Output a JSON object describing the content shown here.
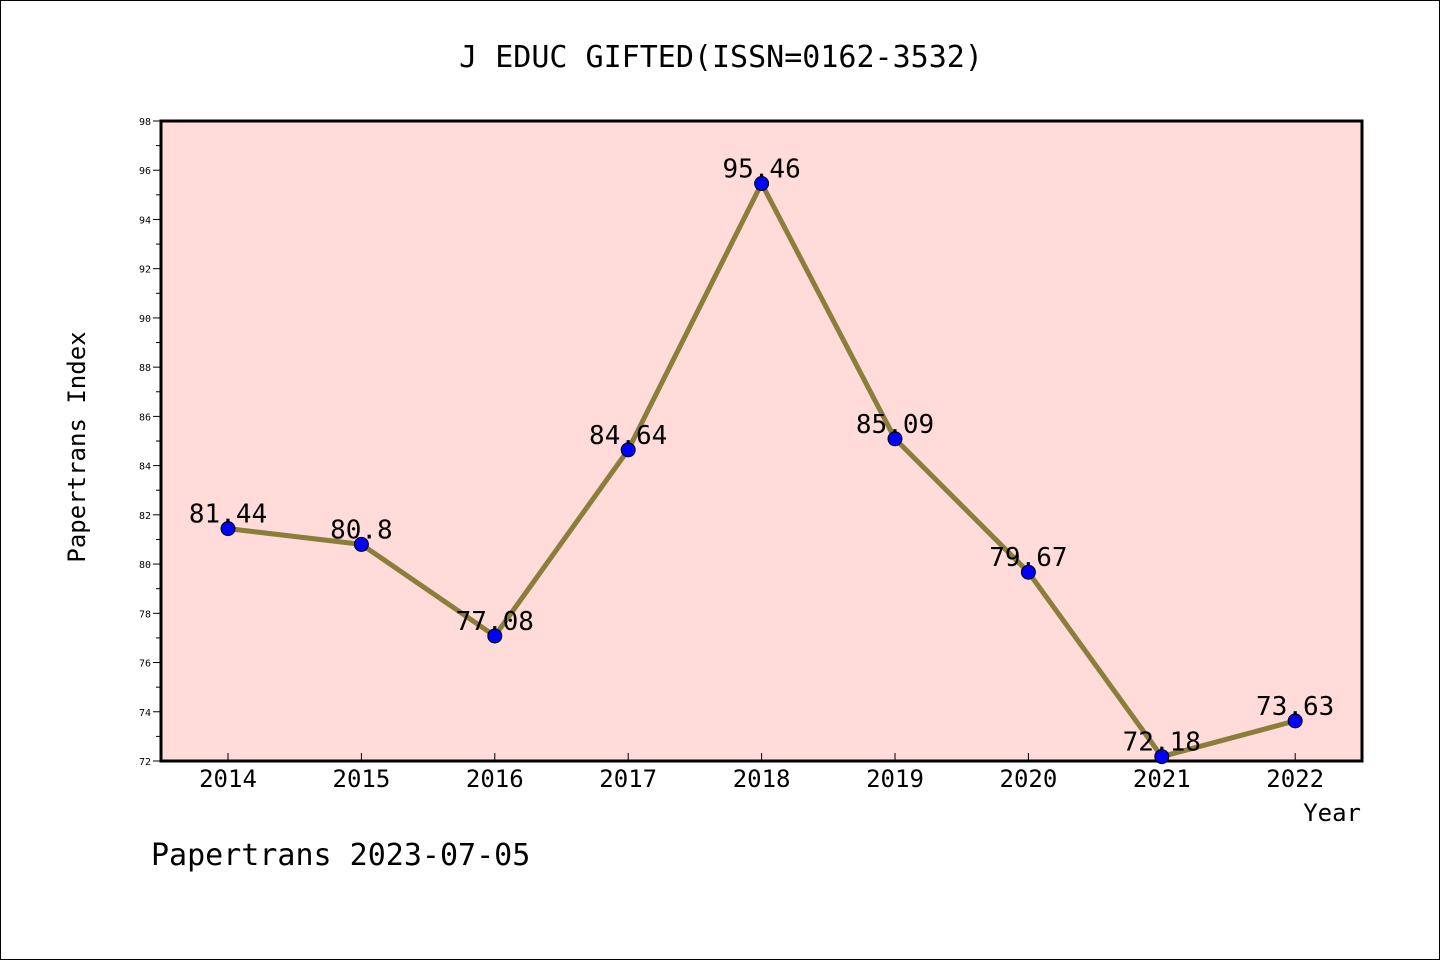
{
  "chart_data": {
    "type": "line",
    "title": "J EDUC GIFTED(ISSN=0162-3532)",
    "xlabel": "Year",
    "ylabel": "Papertrans Index",
    "categories": [
      "2014",
      "2015",
      "2016",
      "2017",
      "2018",
      "2019",
      "2020",
      "2021",
      "2022"
    ],
    "values": [
      81.44,
      80.8,
      77.08,
      84.64,
      95.46,
      85.09,
      79.67,
      72.18,
      73.63
    ],
    "value_labels": [
      "81.44",
      "80.8",
      "77.08",
      "84.64",
      "95.46",
      "85.09",
      "79.67",
      "72.18",
      "73.63"
    ],
    "ylim": [
      72,
      98
    ],
    "yticks": [
      "72",
      "74",
      "76",
      "78",
      "80",
      "82",
      "84",
      "86",
      "88",
      "90",
      "92",
      "94",
      "96",
      "98"
    ],
    "grid": false,
    "colors": {
      "plot_background": "#ffdcd9",
      "line": "#8b7d3a",
      "marker": "#0000ff"
    }
  },
  "footer": "Papertrans 2023-07-05"
}
